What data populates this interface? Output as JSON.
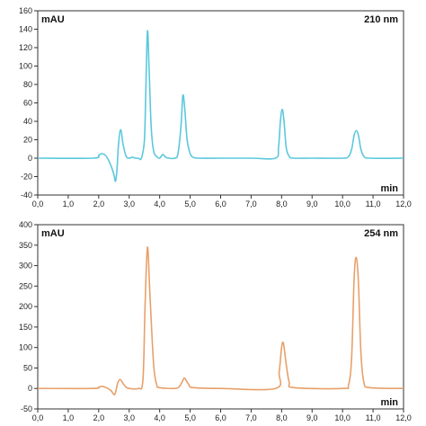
{
  "chart_data": [
    {
      "type": "line",
      "title": "",
      "ylabel": "mAU",
      "xlabel": "min",
      "wavelength": "210 nm",
      "xlim": [
        0,
        12
      ],
      "ylim": [
        -40,
        160
      ],
      "grid": false,
      "x_ticks": [
        "0,0",
        "1,0",
        "2,0",
        "3,0",
        "4,0",
        "5,0",
        "6,0",
        "7,0",
        "8,0",
        "9,0",
        "10,0",
        "11,0",
        "12,0"
      ],
      "y_ticks": [
        "-40",
        "-20",
        "0",
        "20",
        "40",
        "60",
        "80",
        "100",
        "120",
        "140",
        "160"
      ],
      "line_color": "#5bc8dc",
      "series": [
        {
          "x": [
            0.0,
            1.8,
            2.0,
            2.1,
            2.25,
            2.4,
            2.5,
            2.55,
            2.6,
            2.65,
            2.72,
            2.8,
            2.9,
            3.0,
            3.1,
            3.2,
            3.3,
            3.4,
            3.5,
            3.55,
            3.6,
            3.65,
            3.72,
            3.8,
            3.9,
            4.0,
            4.1,
            4.2,
            4.3,
            4.5,
            4.6,
            4.7,
            4.76,
            4.82,
            4.9,
            5.0,
            5.1,
            5.3,
            6.0,
            7.0,
            7.8,
            7.9,
            7.96,
            8.02,
            8.08,
            8.15,
            8.25,
            8.4,
            9.0,
            10.0,
            10.2,
            10.3,
            10.38,
            10.45,
            10.52,
            10.6,
            10.7,
            10.9,
            12.0
          ],
          "y": [
            0,
            0,
            3,
            5,
            2,
            -8,
            -18,
            -25,
            -12,
            15,
            31,
            15,
            2,
            0,
            1,
            0,
            0,
            0,
            20,
            80,
            138,
            100,
            35,
            8,
            2,
            0,
            4,
            1,
            0,
            0,
            5,
            35,
            68,
            55,
            20,
            5,
            1,
            0,
            0,
            0,
            0,
            12,
            40,
            53,
            40,
            12,
            2,
            0,
            0,
            0,
            2,
            10,
            25,
            30,
            25,
            10,
            2,
            0,
            0
          ]
        }
      ]
    },
    {
      "type": "line",
      "title": "",
      "ylabel": "mAU",
      "xlabel": "min",
      "wavelength": "254 nm",
      "xlim": [
        0,
        12
      ],
      "ylim": [
        -50,
        400
      ],
      "grid": false,
      "x_ticks": [
        "0,0",
        "1,0",
        "2,0",
        "3,0",
        "4,0",
        "5,0",
        "6,0",
        "7,0",
        "8,0",
        "9,0",
        "10,0",
        "11,0",
        "12,0"
      ],
      "y_ticks": [
        "-50",
        "0",
        "50",
        "100",
        "150",
        "200",
        "250",
        "300",
        "350",
        "400"
      ],
      "line_color": "#e8a06a",
      "series": [
        {
          "x": [
            0.0,
            1.8,
            2.0,
            2.1,
            2.25,
            2.4,
            2.5,
            2.55,
            2.62,
            2.7,
            2.8,
            2.9,
            3.0,
            3.3,
            3.45,
            3.52,
            3.6,
            3.68,
            3.8,
            3.9,
            4.0,
            4.5,
            4.65,
            4.75,
            4.82,
            4.95,
            5.1,
            6.0,
            7.8,
            7.92,
            8.0,
            8.06,
            8.15,
            8.25,
            8.4,
            10.0,
            10.2,
            10.3,
            10.38,
            10.45,
            10.52,
            10.6,
            10.7,
            10.9,
            12.0
          ],
          "y": [
            0,
            0,
            3,
            5,
            2,
            -5,
            -15,
            -10,
            12,
            22,
            12,
            3,
            0,
            0,
            20,
            200,
            345,
            230,
            60,
            10,
            2,
            0,
            5,
            18,
            25,
            10,
            2,
            0,
            0,
            40,
            100,
            110,
            60,
            15,
            2,
            0,
            10,
            80,
            270,
            320,
            260,
            90,
            15,
            2,
            0
          ]
        }
      ]
    }
  ]
}
